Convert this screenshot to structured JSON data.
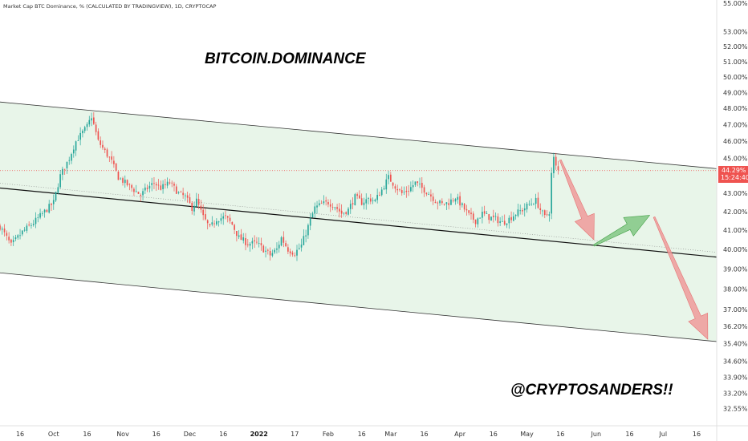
{
  "header": {
    "symbol_text": "Market Cap BTC Dominance, % (CALCULATED BY TRADINGVIEW), 1D, CRYPTOCAP"
  },
  "annotations": {
    "title": "BITCOIN.DOMINANCE",
    "handle": "@CRYPTOSANDERS!!"
  },
  "price_box": {
    "price": "44.29%",
    "timer": "15:24:40",
    "color": "#ef5350"
  },
  "colors": {
    "channel_fill": "#e8f5e9",
    "candle_up": "#26a69a",
    "candle_down": "#ef5350",
    "arrow_down": "#ef9a9a",
    "arrow_up": "#81c784",
    "channel_line": "#333333",
    "current_price_line": "#ef5350"
  },
  "chart_data": {
    "type": "candlestick",
    "y_axis": {
      "scale": "log",
      "range": [
        32.3,
        55.0
      ],
      "tick_values": [
        55.0,
        53.0,
        52.0,
        51.0,
        50.0,
        49.0,
        48.0,
        47.0,
        46.0,
        45.0,
        44.29,
        43.0,
        42.0,
        41.0,
        40.0,
        39.0,
        38.0,
        37.0,
        36.2,
        35.4,
        34.6,
        33.9,
        33.2,
        32.55
      ],
      "tick_labels": [
        "55.00%",
        "53.00%",
        "52.00%",
        "51.00%",
        "50.00%",
        "49.00%",
        "48.00%",
        "47.00%",
        "46.00%",
        "45.00%",
        "",
        "43.00%",
        "42.00%",
        "41.00%",
        "40.00%",
        "39.00%",
        "38.00%",
        "37.00%",
        "36.20%",
        "35.40%",
        "34.60%",
        "33.90%",
        "33.20%",
        "32.55%"
      ]
    },
    "x_axis": {
      "range": [
        "2021-09-07",
        "2022-07-25"
      ],
      "tick_dates": [
        "2021-09-16",
        "2021-10-01",
        "2021-10-16",
        "2021-11-01",
        "2021-11-16",
        "2021-12-01",
        "2021-12-16",
        "2022-01-01",
        "2022-01-17",
        "2022-02-01",
        "2022-02-16",
        "2022-03-01",
        "2022-03-16",
        "2022-04-01",
        "2022-04-16",
        "2022-05-01",
        "2022-05-16",
        "2022-06-01",
        "2022-06-16",
        "2022-07-01",
        "2022-07-16"
      ],
      "tick_labels": [
        "16",
        "Oct",
        "16",
        "Nov",
        "16",
        "Dec",
        "16",
        "2022",
        "17",
        "Feb",
        "16",
        "Mar",
        "16",
        "Apr",
        "16",
        "May",
        "16",
        "Jun",
        "16",
        "Jul",
        "16"
      ]
    },
    "close_path": [
      [
        "2021-09-07",
        41.2
      ],
      [
        "2021-09-12",
        40.2
      ],
      [
        "2021-09-17",
        40.9
      ],
      [
        "2021-09-22",
        41.4
      ],
      [
        "2021-09-27",
        42.0
      ],
      [
        "2021-10-01",
        42.5
      ],
      [
        "2021-10-04",
        44.0
      ],
      [
        "2021-10-08",
        45.0
      ],
      [
        "2021-10-11",
        46.0
      ],
      [
        "2021-10-16",
        46.9
      ],
      [
        "2021-10-18",
        47.5
      ],
      [
        "2021-10-21",
        46.0
      ],
      [
        "2021-10-24",
        45.4
      ],
      [
        "2021-10-27",
        44.8
      ],
      [
        "2021-10-30",
        43.9
      ],
      [
        "2021-11-03",
        43.5
      ],
      [
        "2021-11-06",
        43.2
      ],
      [
        "2021-11-09",
        42.9
      ],
      [
        "2021-11-12",
        43.3
      ],
      [
        "2021-11-15",
        43.6
      ],
      [
        "2021-11-18",
        43.3
      ],
      [
        "2021-11-22",
        43.6
      ],
      [
        "2021-11-26",
        43.0
      ],
      [
        "2021-11-29",
        42.8
      ],
      [
        "2021-12-02",
        42.2
      ],
      [
        "2021-12-04",
        42.6
      ],
      [
        "2021-12-07",
        41.7
      ],
      [
        "2021-12-10",
        41.1
      ],
      [
        "2021-12-13",
        41.6
      ],
      [
        "2021-12-17",
        41.7
      ],
      [
        "2021-12-20",
        41.3
      ],
      [
        "2021-12-23",
        40.6
      ],
      [
        "2021-12-27",
        40.3
      ],
      [
        "2021-12-31",
        40.3
      ],
      [
        "2022-01-03",
        40.0
      ],
      [
        "2022-01-06",
        39.7
      ],
      [
        "2022-01-09",
        40.0
      ],
      [
        "2022-01-11",
        40.6
      ],
      [
        "2022-01-14",
        40.0
      ],
      [
        "2022-01-17",
        39.8
      ],
      [
        "2022-01-20",
        40.2
      ],
      [
        "2022-01-23",
        41.2
      ],
      [
        "2022-01-26",
        42.2
      ],
      [
        "2022-01-29",
        42.4
      ],
      [
        "2022-02-01",
        42.5
      ],
      [
        "2022-02-04",
        42.3
      ],
      [
        "2022-02-07",
        41.9
      ],
      [
        "2022-02-10",
        42.1
      ],
      [
        "2022-02-13",
        42.8
      ],
      [
        "2022-02-16",
        42.5
      ],
      [
        "2022-02-19",
        42.7
      ],
      [
        "2022-02-22",
        42.6
      ],
      [
        "2022-02-25",
        43.2
      ],
      [
        "2022-02-28",
        43.9
      ],
      [
        "2022-03-03",
        43.4
      ],
      [
        "2022-03-06",
        43.0
      ],
      [
        "2022-03-09",
        43.2
      ],
      [
        "2022-03-12",
        43.6
      ],
      [
        "2022-03-15",
        43.3
      ],
      [
        "2022-03-18",
        43.0
      ],
      [
        "2022-03-21",
        42.6
      ],
      [
        "2022-03-24",
        42.4
      ],
      [
        "2022-03-27",
        42.5
      ],
      [
        "2022-03-30",
        42.8
      ],
      [
        "2022-04-02",
        42.3
      ],
      [
        "2022-04-05",
        41.8
      ],
      [
        "2022-04-08",
        41.5
      ],
      [
        "2022-04-11",
        41.9
      ],
      [
        "2022-04-14",
        41.7
      ],
      [
        "2022-04-17",
        41.6
      ],
      [
        "2022-04-20",
        41.4
      ],
      [
        "2022-04-23",
        41.6
      ],
      [
        "2022-04-26",
        41.9
      ],
      [
        "2022-04-29",
        42.1
      ],
      [
        "2022-05-02",
        42.4
      ],
      [
        "2022-05-05",
        42.6
      ],
      [
        "2022-05-07",
        42.1
      ],
      [
        "2022-05-09",
        41.7
      ],
      [
        "2022-05-11",
        42.0
      ],
      [
        "2022-05-12",
        44.1
      ],
      [
        "2022-05-13",
        45.0
      ],
      [
        "2022-05-14",
        44.5
      ],
      [
        "2022-05-15",
        44.29
      ]
    ],
    "channel": {
      "upper": [
        [
          "2021-09-07",
          48.4
        ],
        [
          "2022-07-25",
          44.4
        ]
      ],
      "lower": [
        [
          "2021-09-07",
          38.8
        ],
        [
          "2022-07-25",
          35.5
        ]
      ],
      "middle": [
        [
          "2021-09-07",
          43.3
        ],
        [
          "2022-07-25",
          39.6
        ]
      ]
    },
    "current_price": 44.29,
    "projection_arrows": [
      {
        "direction": "down",
        "from": [
          "2022-05-16",
          44.9
        ],
        "to": [
          "2022-05-31",
          40.5
        ]
      },
      {
        "direction": "up",
        "from": [
          "2022-05-31",
          40.2
        ],
        "to": [
          "2022-06-25",
          41.8
        ]
      },
      {
        "direction": "down",
        "from": [
          "2022-06-27",
          41.7
        ],
        "to": [
          "2022-07-21",
          35.6
        ]
      }
    ]
  }
}
